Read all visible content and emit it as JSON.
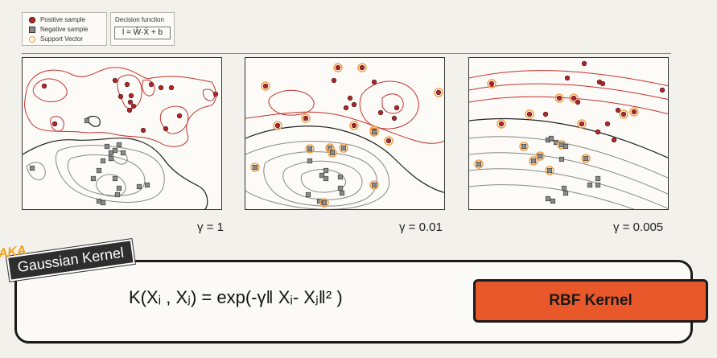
{
  "legend": {
    "positive": "Positive sample",
    "negative": "Negative sample",
    "support_vector": "Support Vector"
  },
  "decision_function": {
    "title": "Decision function",
    "equation": "l = W̄·X̄ + b"
  },
  "panels": [
    {
      "gamma_label": "γ = 1"
    },
    {
      "gamma_label": "γ = 0.01"
    },
    {
      "gamma_label": "γ = 0.005"
    }
  ],
  "aka_label": "AKA",
  "gaussian_kernel_label": "Gaussian Kernel",
  "formula": "K(Xᵢ , Xⱼ) = exp(-γ‖ Xᵢ- Xⱼ‖² )",
  "rbf_button": "RBF Kernel",
  "colors": {
    "positive": "#b3262a",
    "negative": "#8a8a8a",
    "support_vector": "#f2a24b",
    "boundary": "#222222",
    "rbf_fill": "#e8582a"
  }
}
